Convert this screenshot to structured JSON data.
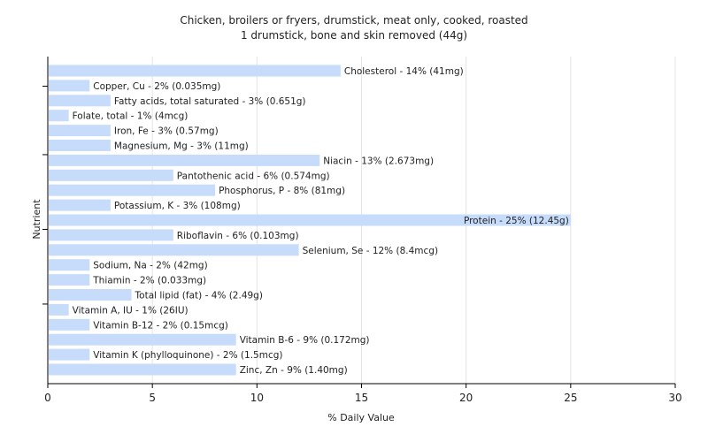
{
  "chart_data": {
    "type": "bar",
    "orientation": "horizontal",
    "title": "Chicken, broilers or fryers, drumstick, meat only, cooked, roasted",
    "subtitle": "1 drumstick, bone and skin removed (44g)",
    "xlabel": "% Daily Value",
    "ylabel": "Nutrient",
    "xlim": [
      0,
      30
    ],
    "xticks": [
      "0",
      "5",
      "10",
      "15",
      "20",
      "25",
      "30"
    ],
    "grid": true,
    "bar_color": "#c6dcfa",
    "categories": [
      "Cholesterol",
      "Copper, Cu",
      "Fatty acids, total saturated",
      "Folate, total",
      "Iron, Fe",
      "Magnesium, Mg",
      "Niacin",
      "Pantothenic acid",
      "Phosphorus, P",
      "Potassium, K",
      "Protein",
      "Riboflavin",
      "Selenium, Se",
      "Sodium, Na",
      "Thiamin",
      "Total lipid (fat)",
      "Vitamin A, IU",
      "Vitamin B-12",
      "Vitamin B-6",
      "Vitamin K (phylloquinone)",
      "Zinc, Zn"
    ],
    "values": [
      14,
      2,
      3,
      1,
      3,
      3,
      13,
      6,
      8,
      3,
      25,
      6,
      12,
      2,
      2,
      4,
      1,
      2,
      9,
      2,
      9
    ],
    "labels": [
      "Cholesterol - 14% (41mg)",
      "Copper, Cu - 2% (0.035mg)",
      "Fatty acids, total saturated - 3% (0.651g)",
      "Folate, total - 1% (4mcg)",
      "Iron, Fe - 3% (0.57mg)",
      "Magnesium, Mg - 3% (11mg)",
      "Niacin - 13% (2.673mg)",
      "Pantothenic acid - 6% (0.574mg)",
      "Phosphorus, P - 8% (81mg)",
      "Potassium, K - 3% (108mg)",
      "Protein - 25% (12.45g)",
      "Riboflavin - 6% (0.103mg)",
      "Selenium, Se - 12% (8.4mcg)",
      "Sodium, Na - 2% (42mg)",
      "Thiamin - 2% (0.033mg)",
      "Total lipid (fat) - 4% (2.49g)",
      "Vitamin A, IU - 1% (26IU)",
      "Vitamin B-12 - 2% (0.15mcg)",
      "Vitamin B-6 - 9% (0.172mg)",
      "Vitamin K (phylloquinone) - 2% (1.5mcg)",
      "Zinc, Zn - 9% (1.40mg)"
    ]
  }
}
